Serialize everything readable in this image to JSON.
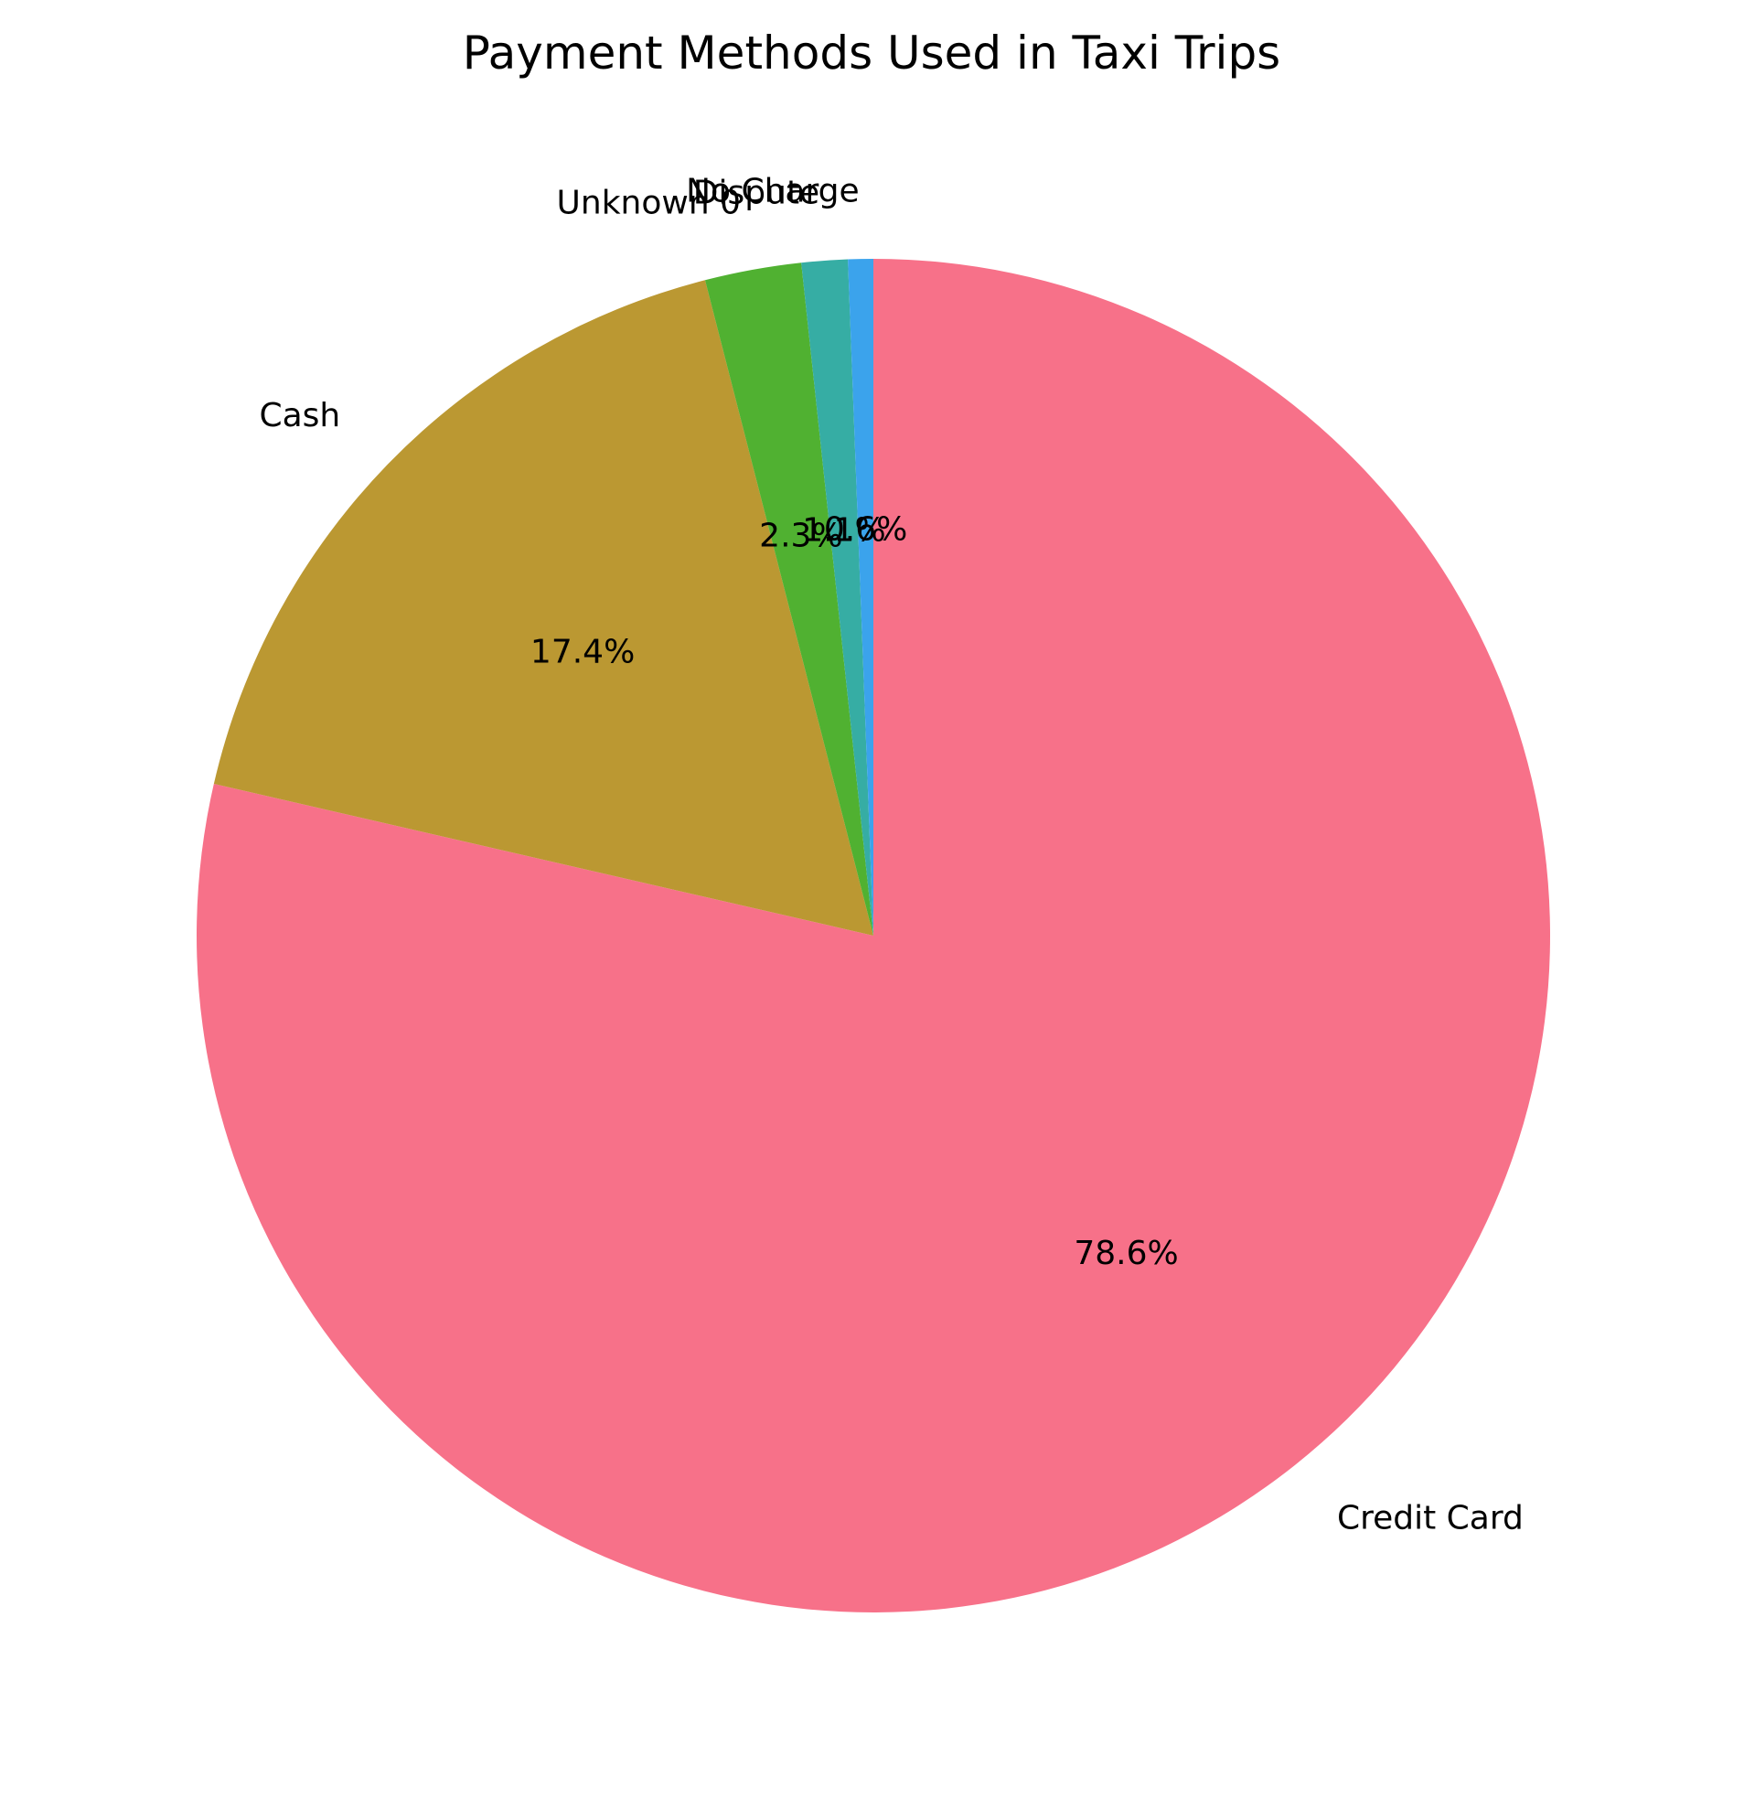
{
  "chart_data": {
    "type": "pie",
    "title": "Payment Methods Used in Taxi Trips",
    "start_angle_deg": 90,
    "direction": "clockwise",
    "slices": [
      {
        "label": "Credit Card",
        "value": 78.6,
        "pct_label": "78.6%",
        "color": "#f77189"
      },
      {
        "label": "Cash",
        "value": 17.4,
        "pct_label": "17.4%",
        "color": "#bb9832"
      },
      {
        "label": "Unknown 0",
        "value": 2.3,
        "pct_label": "2.3%",
        "color": "#50b131"
      },
      {
        "label": "Dispute",
        "value": 1.1,
        "pct_label": "1.1%",
        "color": "#36ada4"
      },
      {
        "label": "No Charge",
        "value": 0.6,
        "pct_label": "0.6%",
        "color": "#3ba3ec"
      }
    ]
  }
}
